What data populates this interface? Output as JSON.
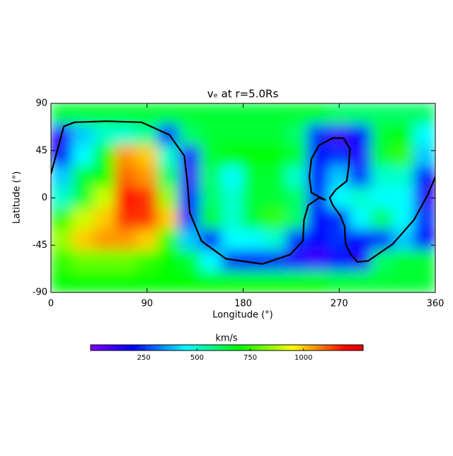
{
  "chart_data": {
    "type": "heatmap",
    "title": "vₑ at r=5.0Rs",
    "xlabel": "Longitude (°)",
    "ylabel": "Latitude (°)",
    "xlim": [
      0,
      360
    ],
    "ylim": [
      -90,
      90
    ],
    "xticks": [
      0,
      90,
      180,
      270,
      360
    ],
    "yticks": [
      -90,
      -45,
      0,
      45,
      90
    ],
    "x": [
      10,
      30,
      50,
      70,
      90,
      110,
      130,
      150,
      170,
      190,
      210,
      230,
      250,
      270,
      290,
      310,
      330,
      350
    ],
    "y": [
      80,
      60,
      40,
      20,
      0,
      -20,
      -40,
      -60,
      -80
    ],
    "values": [
      [
        650,
        650,
        650,
        650,
        650,
        650,
        650,
        650,
        650,
        650,
        650,
        650,
        650,
        600,
        600,
        600,
        600,
        600
      ],
      [
        150,
        400,
        500,
        500,
        550,
        250,
        600,
        650,
        650,
        650,
        650,
        600,
        250,
        100,
        200,
        650,
        700,
        450
      ],
      [
        200,
        450,
        700,
        1050,
        1000,
        500,
        150,
        650,
        700,
        700,
        700,
        650,
        200,
        250,
        150,
        650,
        750,
        400
      ],
      [
        400,
        650,
        700,
        1100,
        1050,
        600,
        100,
        600,
        450,
        650,
        650,
        500,
        200,
        400,
        250,
        500,
        500,
        200
      ],
      [
        500,
        650,
        900,
        1200,
        1150,
        850,
        200,
        600,
        500,
        650,
        650,
        600,
        250,
        450,
        500,
        450,
        450,
        150
      ],
      [
        750,
        900,
        1000,
        1150,
        1150,
        1000,
        250,
        650,
        500,
        650,
        750,
        600,
        200,
        250,
        450,
        600,
        450,
        250
      ],
      [
        850,
        1000,
        1050,
        1050,
        1000,
        750,
        400,
        200,
        450,
        450,
        500,
        250,
        200,
        250,
        200,
        250,
        400,
        200
      ],
      [
        750,
        800,
        800,
        800,
        750,
        700,
        650,
        450,
        250,
        200,
        250,
        150,
        100,
        200,
        150,
        600,
        650,
        650
      ],
      [
        700,
        700,
        700,
        700,
        700,
        700,
        700,
        700,
        700,
        700,
        700,
        700,
        700,
        650,
        650,
        650,
        650,
        650
      ]
    ],
    "colorbar": {
      "label": "km/s",
      "lim": [
        0,
        1280
      ],
      "ticks": [
        250,
        500,
        750,
        1000
      ]
    },
    "contour": {
      "color": "#000000",
      "x": [
        0,
        12,
        22,
        52,
        85,
        111,
        125,
        128,
        130,
        141,
        164,
        198,
        224,
        236,
        237,
        241,
        251,
        257,
        244,
        242,
        244,
        251,
        264,
        274,
        280,
        279,
        277,
        267,
        261,
        264,
        271,
        275,
        276,
        281,
        287,
        297,
        320,
        340,
        353,
        360
      ],
      "y": [
        23,
        68,
        72,
        73,
        72,
        60,
        40,
        13,
        -14,
        -41,
        -58,
        -63,
        -54,
        -41,
        -21,
        -7,
        0,
        -2,
        5,
        20,
        37,
        50,
        57,
        57,
        47,
        30,
        16,
        8,
        0,
        -7,
        -17,
        -27,
        -44,
        -54,
        -61,
        -60,
        -44,
        -21,
        3,
        20
      ]
    }
  }
}
